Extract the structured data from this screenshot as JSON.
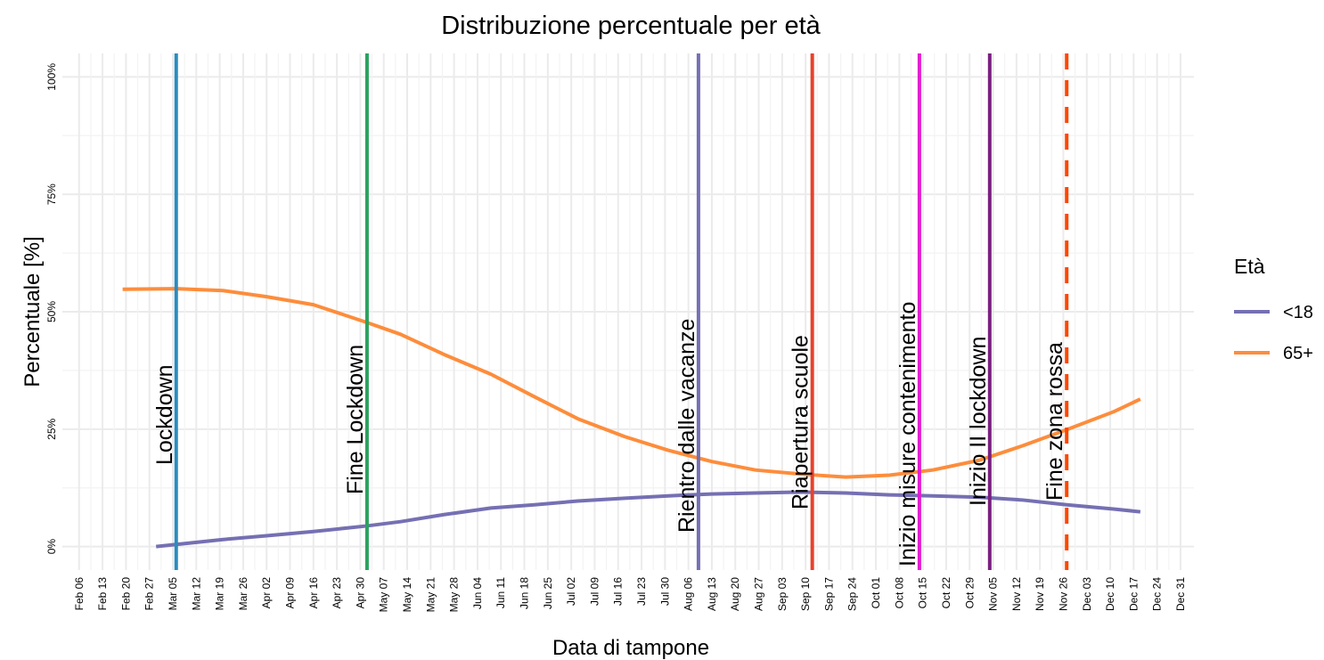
{
  "chart_data": {
    "type": "line",
    "title": "Distribuzione percentuale per età",
    "x_label": "Data di tampone",
    "y_label": "Percentuale [%]",
    "legend_title": "Età",
    "legend": "right",
    "grid": true,
    "xlim": [
      32,
      370
    ],
    "ylim": [
      -5,
      105
    ],
    "yticks": [
      {
        "value": 0,
        "label": "0%"
      },
      {
        "value": 25,
        "label": "25%"
      },
      {
        "value": 50,
        "label": "50%"
      },
      {
        "value": 75,
        "label": "75%"
      },
      {
        "value": 100,
        "label": "100%"
      }
    ],
    "xticks": [
      {
        "value": 37,
        "label": "Feb 06"
      },
      {
        "value": 44,
        "label": "Feb 13"
      },
      {
        "value": 51,
        "label": "Feb 20"
      },
      {
        "value": 58,
        "label": "Feb 27"
      },
      {
        "value": 65,
        "label": "Mar 05"
      },
      {
        "value": 72,
        "label": "Mar 12"
      },
      {
        "value": 79,
        "label": "Mar 19"
      },
      {
        "value": 86,
        "label": "Mar 26"
      },
      {
        "value": 93,
        "label": "Apr 02"
      },
      {
        "value": 100,
        "label": "Apr 09"
      },
      {
        "value": 107,
        "label": "Apr 16"
      },
      {
        "value": 114,
        "label": "Apr 23"
      },
      {
        "value": 121,
        "label": "Apr 30"
      },
      {
        "value": 128,
        "label": "May 07"
      },
      {
        "value": 135,
        "label": "May 14"
      },
      {
        "value": 142,
        "label": "May 21"
      },
      {
        "value": 149,
        "label": "May 28"
      },
      {
        "value": 156,
        "label": "Jun 04"
      },
      {
        "value": 163,
        "label": "Jun 11"
      },
      {
        "value": 170,
        "label": "Jun 18"
      },
      {
        "value": 177,
        "label": "Jun 25"
      },
      {
        "value": 184,
        "label": "Jul 02"
      },
      {
        "value": 191,
        "label": "Jul 09"
      },
      {
        "value": 198,
        "label": "Jul 16"
      },
      {
        "value": 205,
        "label": "Jul 23"
      },
      {
        "value": 212,
        "label": "Jul 30"
      },
      {
        "value": 219,
        "label": "Aug 06"
      },
      {
        "value": 226,
        "label": "Aug 13"
      },
      {
        "value": 233,
        "label": "Aug 20"
      },
      {
        "value": 240,
        "label": "Aug 27"
      },
      {
        "value": 247,
        "label": "Sep 03"
      },
      {
        "value": 254,
        "label": "Sep 10"
      },
      {
        "value": 261,
        "label": "Sep 17"
      },
      {
        "value": 268,
        "label": "Sep 24"
      },
      {
        "value": 275,
        "label": "Oct 01"
      },
      {
        "value": 282,
        "label": "Oct 08"
      },
      {
        "value": 289,
        "label": "Oct 15"
      },
      {
        "value": 296,
        "label": "Oct 22"
      },
      {
        "value": 303,
        "label": "Oct 29"
      },
      {
        "value": 310,
        "label": "Nov 05"
      },
      {
        "value": 317,
        "label": "Nov 12"
      },
      {
        "value": 324,
        "label": "Nov 19"
      },
      {
        "value": 331,
        "label": "Nov 26"
      },
      {
        "value": 338,
        "label": "Dec 03"
      },
      {
        "value": 345,
        "label": "Dec 10"
      },
      {
        "value": 352,
        "label": "Dec 17"
      },
      {
        "value": 359,
        "label": "Dec 24"
      },
      {
        "value": 366,
        "label": "Dec 31"
      }
    ],
    "series": [
      {
        "name": "<18",
        "color": "#7570b3",
        "x": [
          60,
          80,
          93,
          107,
          123,
          133,
          146,
          160,
          173,
          186,
          200,
          213,
          226,
          239,
          253,
          266,
          279,
          292,
          306,
          319,
          332,
          346,
          354
        ],
        "values": [
          0,
          1.5,
          2.3,
          3.2,
          4.4,
          5.3,
          6.8,
          8.2,
          8.9,
          9.7,
          10.3,
          10.8,
          11.2,
          11.4,
          11.6,
          11.4,
          11.0,
          10.8,
          10.5,
          9.9,
          8.9,
          8.0,
          7.4
        ]
      },
      {
        "name": "65+",
        "color": "#fd8d3c",
        "x": [
          50,
          66,
          80,
          93,
          107,
          123,
          133,
          146,
          160,
          173,
          186,
          200,
          213,
          226,
          239,
          253,
          266,
          279,
          292,
          306,
          319,
          332,
          346,
          354
        ],
        "values": [
          54.8,
          54.9,
          54.5,
          53.2,
          51.5,
          47.7,
          45.2,
          40.9,
          36.7,
          31.9,
          27.2,
          23.4,
          20.5,
          18.1,
          16.3,
          15.4,
          14.8,
          15.2,
          16.3,
          18.4,
          21.5,
          24.9,
          28.7,
          31.4
        ]
      }
    ],
    "events": [
      {
        "label": "Lockdown",
        "x": 66,
        "color": "#2b8cbe",
        "dashed": false
      },
      {
        "label": "Fine Lockdown",
        "x": 123,
        "color": "#2ca25f",
        "dashed": false
      },
      {
        "label": "Rientro dalle vacanze",
        "x": 222,
        "color": "#7570b3",
        "dashed": false
      },
      {
        "label": "Riapertura scuole",
        "x": 256,
        "color": "#e8412c",
        "dashed": false
      },
      {
        "label": "Inizio misure contenimento",
        "x": 288,
        "color": "#e31bd1",
        "dashed": false
      },
      {
        "label": "Inizio II lockdown",
        "x": 309,
        "color": "#7a1f80",
        "dashed": false
      },
      {
        "label": "Fine zona rossa",
        "x": 332,
        "color": "#ff4500",
        "dashed": true
      }
    ]
  }
}
